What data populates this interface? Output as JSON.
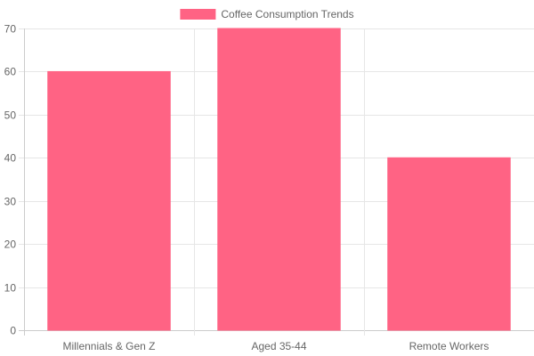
{
  "chart_data": {
    "type": "bar",
    "categories": [
      "Millennials & Gen Z",
      "Aged 35-44",
      "Remote Workers"
    ],
    "series": [
      {
        "name": "Coffee Consumption Trends",
        "values": [
          60,
          70,
          40
        ],
        "color": "#ff6384"
      }
    ],
    "ylim": [
      0,
      70
    ],
    "yticks": [
      0,
      10,
      20,
      30,
      40,
      50,
      60,
      70
    ],
    "grid": true,
    "legend_position": "top-center"
  }
}
